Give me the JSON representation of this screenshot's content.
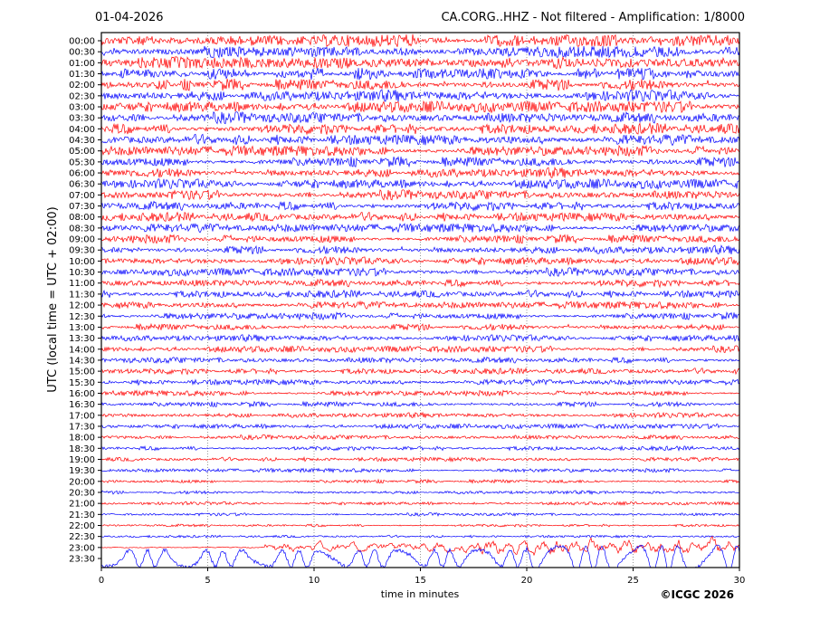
{
  "chart_data": {
    "type": "line",
    "title": "CA.CORG..HHZ - Not filtered - Amplification: 1/8000",
    "date": "01-04-2026",
    "xlabel": "time in minutes",
    "ylabel": "UTC (local time = UTC + 02:00)",
    "xlim": [
      0,
      30
    ],
    "xticks": [
      "0",
      "5",
      "10",
      "15",
      "20",
      "25",
      "30"
    ],
    "grid": "vertical dotted",
    "row_colors": [
      "#ff0000",
      "#0000ff"
    ],
    "rows": [
      "00:00",
      "00:30",
      "01:00",
      "01:30",
      "02:00",
      "02:30",
      "03:00",
      "03:30",
      "04:00",
      "04:30",
      "05:00",
      "05:30",
      "06:00",
      "06:30",
      "07:00",
      "07:30",
      "08:00",
      "08:30",
      "09:00",
      "09:30",
      "10:00",
      "10:30",
      "11:00",
      "11:30",
      "12:00",
      "12:30",
      "13:00",
      "13:30",
      "14:00",
      "14:30",
      "15:00",
      "15:30",
      "16:00",
      "16:30",
      "17:00",
      "17:30",
      "18:00",
      "18:30",
      "19:00",
      "19:30",
      "20:00",
      "20:30",
      "21:00",
      "21:30",
      "22:00",
      "22:30",
      "23:00",
      "23:30"
    ]
  },
  "copyright": "©ICGC 2026"
}
